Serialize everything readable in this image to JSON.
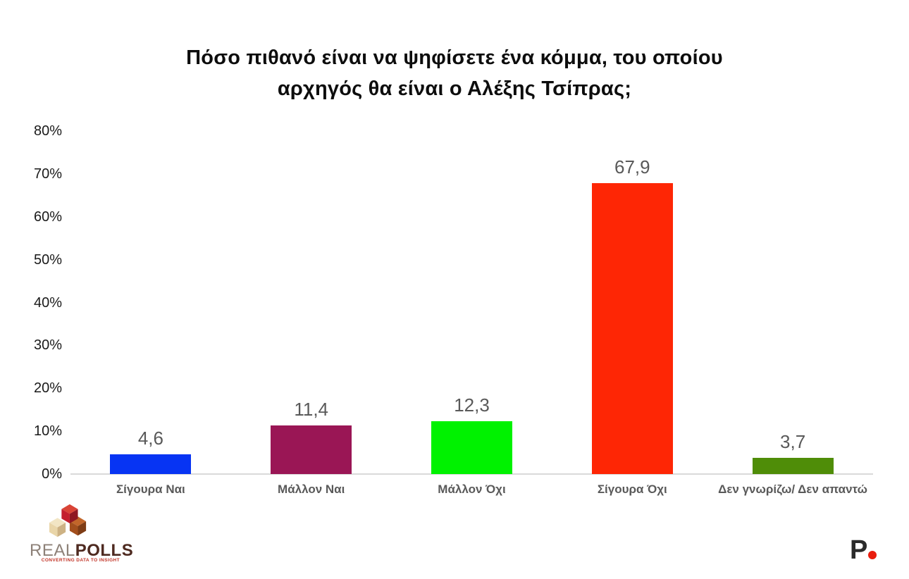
{
  "page": {
    "background": "#ffffff"
  },
  "title_lines": [
    "Πόσο πιθανό είναι να ψηφίσετε ένα κόμμα, του οποίου",
    "αρχηγός θα είναι ο Αλέξης Τσίπρας;"
  ],
  "chart_data": {
    "type": "bar",
    "title": "Πόσο πιθανό είναι να ψηφίσετε ένα κόμμα, του οποίου αρχηγός θα είναι ο Αλέξης Τσίπρας;",
    "categories": [
      "Σίγουρα Ναι",
      "Μάλλον Ναι",
      "Μάλλον Όχι",
      "Σίγουρα Όχι",
      "Δεν γνωρίζω/ Δεν απαντώ"
    ],
    "values": [
      4.6,
      11.4,
      12.3,
      67.9,
      3.7
    ],
    "value_labels": [
      "4,6",
      "11,4",
      "12,3",
      "67,9",
      "3,7"
    ],
    "bar_colors": [
      "#0734f3",
      "#9a1655",
      "#00f200",
      "#fe2605",
      "#4f8d08"
    ],
    "xlabel": "",
    "ylabel": "",
    "ylim": [
      0,
      80
    ],
    "ytick_labels": [
      "0%",
      "10%",
      "20%",
      "30%",
      "40%",
      "50%",
      "60%",
      "70%",
      "80%"
    ],
    "grid": false,
    "legend": "none"
  },
  "colors": {
    "axis_line": "#d9d9d9",
    "tick_label": "#1a1a1a",
    "value_label": "#595959",
    "category_label": "#595959"
  },
  "branding": {
    "realpolls": {
      "name_part1": "REAL",
      "name_part2": "POLLS",
      "tagline": "CONVERTING DATA TO INSIGHT",
      "colors": {
        "cube_red": "#c41f2e",
        "cube_cream": "#e9d5a8",
        "cube_brown": "#a34f1d",
        "wordmark_light": "#8d8178",
        "wordmark_dark": "#4e2a20",
        "tagline_red": "#c13326"
      }
    },
    "p_logo": {
      "letter": "P",
      "letter_color": "#2b2b2b",
      "dot_color": "#e91d0e"
    }
  }
}
